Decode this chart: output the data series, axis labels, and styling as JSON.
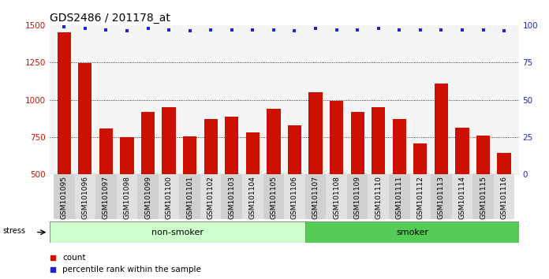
{
  "title": "GDS2486 / 201178_at",
  "samples": [
    "GSM101095",
    "GSM101096",
    "GSM101097",
    "GSM101098",
    "GSM101099",
    "GSM101100",
    "GSM101101",
    "GSM101102",
    "GSM101103",
    "GSM101104",
    "GSM101105",
    "GSM101106",
    "GSM101107",
    "GSM101108",
    "GSM101109",
    "GSM101110",
    "GSM101111",
    "GSM101112",
    "GSM101113",
    "GSM101114",
    "GSM101115",
    "GSM101116"
  ],
  "counts": [
    1450,
    1245,
    810,
    750,
    920,
    950,
    755,
    870,
    885,
    780,
    940,
    830,
    1050,
    990,
    920,
    950,
    870,
    705,
    1110,
    815,
    760,
    645
  ],
  "percentile_ranks": [
    99,
    98,
    97,
    96,
    98,
    97,
    96,
    97,
    97,
    97,
    97,
    96,
    98,
    97,
    97,
    98,
    97,
    97,
    97,
    97,
    97,
    96
  ],
  "bar_color": "#cc1100",
  "dot_color": "#2222cc",
  "ylim_left": [
    500,
    1500
  ],
  "ylim_right": [
    0,
    100
  ],
  "yticks_left": [
    500,
    750,
    1000,
    1250,
    1500
  ],
  "yticks_right": [
    0,
    25,
    50,
    75,
    100
  ],
  "grid_values": [
    750,
    1000,
    1250
  ],
  "non_smoker_count": 12,
  "smoker_count": 10,
  "non_smoker_color": "#ccffcc",
  "smoker_color": "#55cc55",
  "stress_label": "stress",
  "non_smoker_label": "non-smoker",
  "smoker_label": "smoker",
  "legend_count_label": "count",
  "legend_pct_label": "percentile rank within the sample",
  "title_fontsize": 10,
  "tick_label_fontsize": 6.5,
  "axis_tick_fontsize": 7.5
}
